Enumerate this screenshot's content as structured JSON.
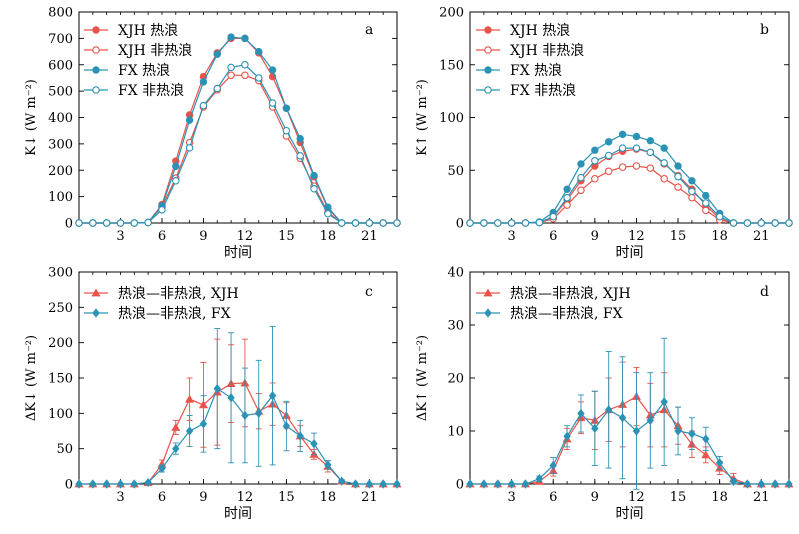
{
  "colors": {
    "xjh": "#e8534a",
    "fx": "#2a93b5"
  },
  "hours": [
    0,
    1,
    2,
    3,
    4,
    5,
    6,
    7,
    8,
    9,
    10,
    11,
    12,
    13,
    14,
    15,
    16,
    17,
    18,
    19,
    20,
    21,
    22,
    23
  ],
  "chart_data": [
    {
      "id": "a",
      "type": "line",
      "panel_letter": "a",
      "ylabel": "K↓ (W m⁻²)",
      "xlabel": "时间",
      "xlim": [
        0,
        23
      ],
      "ylim": [
        0,
        800
      ],
      "xticks": [
        3,
        6,
        9,
        12,
        15,
        18,
        21
      ],
      "yticks": [
        0,
        100,
        200,
        300,
        400,
        500,
        600,
        700,
        800
      ],
      "legend": "top-left",
      "series": [
        {
          "name": "XJH 热浪",
          "color": "#e8534a",
          "marker": "filled-circle",
          "values": [
            0,
            0,
            0,
            0,
            0,
            2,
            70,
            235,
            410,
            555,
            645,
            700,
            700,
            645,
            555,
            435,
            305,
            175,
            55,
            0,
            0,
            0,
            0,
            0
          ]
        },
        {
          "name": "XJH 非热浪",
          "color": "#e8534a",
          "marker": "open-circle",
          "values": [
            0,
            0,
            0,
            0,
            0,
            2,
            62,
            170,
            305,
            440,
            505,
            560,
            560,
            540,
            440,
            330,
            245,
            140,
            40,
            0,
            0,
            0,
            0,
            0
          ]
        },
        {
          "name": "FX 热浪",
          "color": "#2a93b5",
          "marker": "filled-circle",
          "values": [
            0,
            0,
            0,
            0,
            0,
            2,
            65,
            215,
            390,
            535,
            640,
            705,
            700,
            650,
            580,
            435,
            320,
            180,
            60,
            0,
            0,
            0,
            0,
            0
          ]
        },
        {
          "name": "FX 非热浪",
          "color": "#2a93b5",
          "marker": "open-circle",
          "values": [
            0,
            0,
            0,
            0,
            0,
            2,
            50,
            160,
            285,
            445,
            510,
            590,
            600,
            550,
            455,
            350,
            255,
            130,
            35,
            0,
            0,
            0,
            0,
            0
          ]
        }
      ]
    },
    {
      "id": "b",
      "type": "line",
      "panel_letter": "b",
      "ylabel": "K↑ (W m⁻²)",
      "xlabel": "时间",
      "xlim": [
        0,
        23
      ],
      "ylim": [
        0,
        200
      ],
      "xticks": [
        3,
        6,
        9,
        12,
        15,
        18,
        21
      ],
      "yticks": [
        0,
        50,
        100,
        150,
        200
      ],
      "legend": "top-right",
      "series": [
        {
          "name": "XJH 热浪",
          "color": "#e8534a",
          "marker": "filled-circle",
          "values": [
            0,
            0,
            0,
            0,
            0,
            0.5,
            6,
            22,
            40,
            54,
            63,
            68,
            70,
            67,
            56,
            45,
            32,
            17,
            4,
            0,
            0,
            0,
            0,
            0
          ]
        },
        {
          "name": "XJH 非热浪",
          "color": "#e8534a",
          "marker": "open-circle",
          "values": [
            0,
            0,
            0,
            0,
            0,
            0.5,
            4,
            17,
            31,
            42,
            49,
            53,
            54,
            52,
            42,
            34,
            24,
            12,
            3,
            0,
            0,
            0,
            0,
            0
          ]
        },
        {
          "name": "FX 热浪",
          "color": "#2a93b5",
          "marker": "filled-circle",
          "values": [
            0,
            0,
            0,
            0,
            0,
            1,
            10,
            32,
            56,
            69,
            77,
            84,
            82,
            78,
            71,
            54,
            40,
            26,
            9,
            0,
            0,
            0,
            0,
            0
          ]
        },
        {
          "name": "FX 非热浪",
          "color": "#2a93b5",
          "marker": "open-circle",
          "values": [
            0,
            0,
            0,
            0,
            0,
            0.5,
            6,
            24,
            43,
            59,
            64,
            71,
            71,
            67,
            57,
            44,
            30,
            19,
            6,
            0,
            0,
            0,
            0,
            0
          ]
        }
      ]
    },
    {
      "id": "c",
      "type": "line",
      "panel_letter": "c",
      "ylabel": "ΔK↓ (W m⁻²)",
      "xlabel": "时间",
      "xlim": [
        0,
        23
      ],
      "ylim": [
        0,
        300
      ],
      "xticks": [
        3,
        6,
        9,
        12,
        15,
        18,
        21
      ],
      "yticks": [
        0,
        50,
        100,
        150,
        200,
        250,
        300
      ],
      "legend": "top-left",
      "series": [
        {
          "name": "热浪—非热浪, XJH",
          "color": "#e8534a",
          "marker": "triangle",
          "values": [
            0,
            0,
            0,
            0,
            0,
            2,
            28,
            80,
            120,
            112,
            130,
            142,
            143,
            103,
            113,
            97,
            68,
            42,
            25,
            4,
            0,
            0,
            0,
            0
          ],
          "error": [
            0,
            0,
            0,
            0,
            0,
            1,
            6,
            10,
            30,
            60,
            75,
            55,
            62,
            25,
            30,
            18,
            15,
            7,
            8,
            2,
            0,
            0,
            0,
            0
          ]
        },
        {
          "name": "热浪—非热浪, FX",
          "color": "#2a93b5",
          "marker": "diamond",
          "values": [
            0,
            0,
            0,
            0,
            0,
            2,
            22,
            50,
            75,
            85,
            135,
            122,
            97,
            100,
            125,
            82,
            68,
            57,
            27,
            4,
            0,
            0,
            0,
            0
          ],
          "error": [
            0,
            0,
            0,
            0,
            0,
            1,
            5,
            8,
            22,
            40,
            85,
            92,
            67,
            75,
            98,
            35,
            22,
            15,
            6,
            2,
            0,
            0,
            0,
            0
          ]
        }
      ]
    },
    {
      "id": "d",
      "type": "line",
      "panel_letter": "d",
      "ylabel": "ΔK↑ (W m⁻²)",
      "xlabel": "时间",
      "xlim": [
        0,
        23
      ],
      "ylim": [
        0,
        40
      ],
      "xticks": [
        3,
        6,
        9,
        12,
        15,
        18,
        21
      ],
      "yticks": [
        0,
        10,
        20,
        30,
        40
      ],
      "legend": "top-left",
      "series": [
        {
          "name": "热浪—非热浪, XJH",
          "color": "#e8534a",
          "marker": "triangle",
          "values": [
            0,
            0,
            0,
            0,
            0,
            0.5,
            2.5,
            8.5,
            12.5,
            12,
            14,
            15,
            16.5,
            13,
            14,
            11,
            7.5,
            5.5,
            3,
            1,
            0,
            0,
            0,
            0
          ],
          "error": [
            0,
            0,
            0,
            0,
            0,
            0.3,
            1,
            2,
            3,
            5.5,
            6,
            8,
            5.5,
            6,
            7,
            3.5,
            2.5,
            1.5,
            1.2,
            1,
            0,
            0,
            0,
            0
          ]
        },
        {
          "name": "热浪—非热浪, FX",
          "color": "#2a93b5",
          "marker": "diamond",
          "values": [
            0,
            0,
            0,
            0,
            0,
            1,
            3.5,
            9,
            13.3,
            10.5,
            14,
            12.5,
            10,
            12,
            15.5,
            10,
            9.5,
            8.5,
            4,
            0.5,
            0,
            0,
            0,
            0
          ],
          "error": [
            0,
            0,
            0,
            0,
            0,
            0.5,
            1.5,
            2,
            3.5,
            7,
            11,
            11.5,
            11,
            9,
            12,
            4.5,
            3,
            2.2,
            1.2,
            0.5,
            0,
            0,
            0,
            0
          ]
        }
      ]
    }
  ]
}
